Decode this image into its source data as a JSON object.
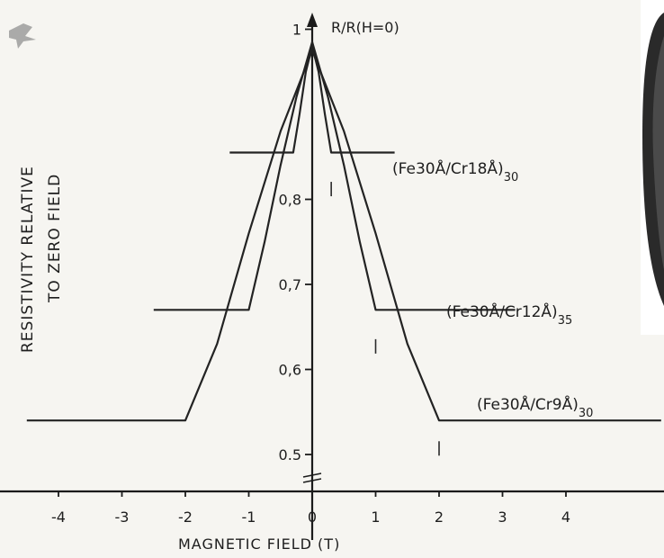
{
  "chart_data": {
    "type": "line",
    "ylabel_lines": [
      "RESISTIVITY RELATIVE",
      "TO ZERO FIELD"
    ],
    "y_axis_title": "R/R(H=0)",
    "xlabel": "MAGNETIC FIELD (T)",
    "x_ticks": [
      -4,
      -3,
      -2,
      -1,
      0,
      1,
      2,
      3,
      4
    ],
    "x_tick_labels": [
      "-4",
      "-3",
      "-2",
      "-1",
      "0",
      "1",
      "2",
      "3",
      "4"
    ],
    "y_ticks": [
      0.5,
      0.6,
      0.7,
      0.8,
      1
    ],
    "y_tick_labels": [
      "0.5",
      "0,6",
      "0,7",
      "0,8",
      "1"
    ],
    "xlim": [
      -4.5,
      5.5
    ],
    "ylim": [
      0.5,
      1.0
    ],
    "grid": false,
    "series": [
      {
        "name": "(Fe30Å/Cr18Å)30",
        "label_main": "(Fe30Å/Cr18Å)",
        "label_sub": "30",
        "x": [
          -1.3,
          -0.3,
          -0.2,
          -0.1,
          0,
          0.1,
          0.2,
          0.3,
          1.3
        ],
        "y": [
          0.855,
          0.855,
          0.9,
          0.95,
          0.98,
          0.95,
          0.9,
          0.855,
          0.855
        ]
      },
      {
        "name": "(Fe30Å/Cr12Å)35",
        "label_main": "(Fe30Å/Cr12Å)",
        "label_sub": "35",
        "x": [
          -2.5,
          -1.0,
          -0.75,
          -0.5,
          -0.25,
          0,
          0.25,
          0.5,
          0.75,
          1.0,
          3.2
        ],
        "y": [
          0.67,
          0.67,
          0.75,
          0.84,
          0.92,
          0.985,
          0.92,
          0.84,
          0.75,
          0.67,
          0.67
        ]
      },
      {
        "name": "(Fe30Å/Cr9Å)30",
        "label_main": "(Fe30Å/Cr9Å)",
        "label_sub": "30",
        "x": [
          -4.5,
          -2.0,
          -1.5,
          -1.0,
          -0.5,
          0,
          0.5,
          1.0,
          1.5,
          2.0,
          5.5
        ],
        "y": [
          0.54,
          0.54,
          0.63,
          0.76,
          0.88,
          0.975,
          0.88,
          0.76,
          0.63,
          0.54,
          0.54
        ]
      }
    ]
  }
}
